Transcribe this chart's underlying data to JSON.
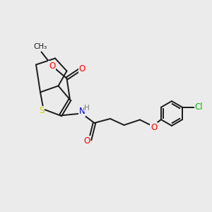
{
  "background_color": "#ebebeb",
  "bond_color": "#1a1a1a",
  "atom_colors": {
    "O": "#ff0000",
    "N": "#0000cc",
    "S": "#cccc00",
    "Cl": "#00bb00",
    "H": "#777777",
    "C": "#1a1a1a"
  },
  "figsize": [
    3.0,
    3.0
  ],
  "dpi": 100,
  "lw": 1.4,
  "fs": 8.5,
  "fs_small": 7.5
}
